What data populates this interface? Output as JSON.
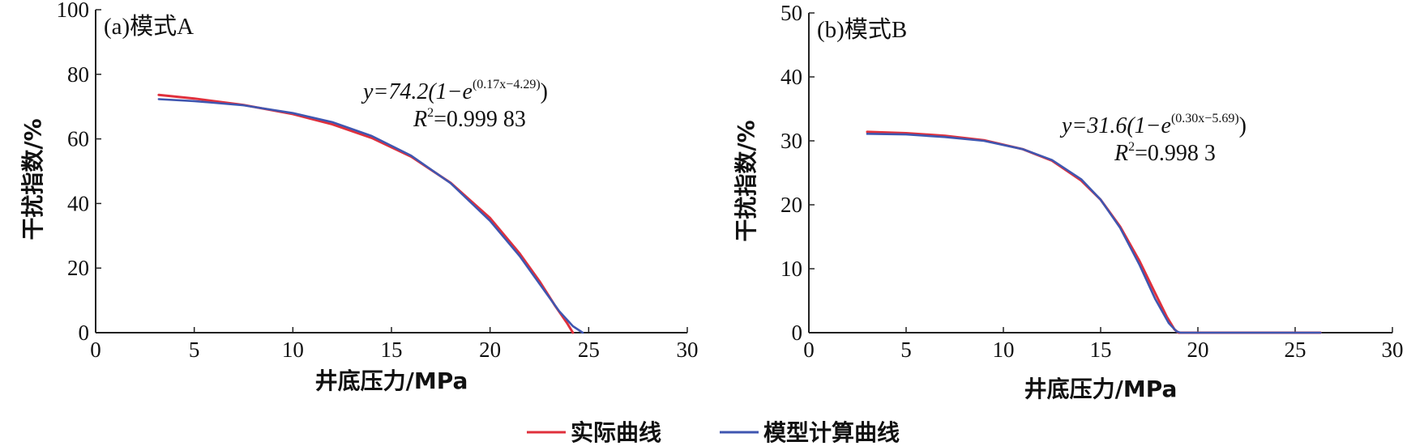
{
  "chart_data": [
    {
      "type": "line",
      "title": "(a)模式A",
      "xlabel": "井底压力/MPa",
      "ylabel": "干扰指数/%",
      "xlim": [
        0,
        30
      ],
      "ylim": [
        0,
        100
      ],
      "xticks": [
        "0",
        "5",
        "10",
        "15",
        "20",
        "25",
        "30"
      ],
      "yticks": [
        "0",
        "20",
        "40",
        "60",
        "80",
        "100"
      ],
      "equation": {
        "prefix": "y=74.2(1−e",
        "exponent": "(0.17x−4.29)",
        "suffix": ")",
        "r2_prefix": "R",
        "r2_sup": "2",
        "r2_value": "=0.999 83"
      },
      "series": [
        {
          "name": "实际曲线",
          "color": "#e0303c",
          "x": [
            3.2,
            5,
            7.5,
            10,
            12,
            14,
            16,
            18,
            20,
            21.5,
            22.5,
            23.3,
            23.9,
            24.1,
            24.2
          ],
          "y": [
            73.6,
            72.5,
            70.5,
            67.7,
            64.5,
            60.3,
            54.5,
            46.4,
            35.5,
            24.5,
            16,
            8.3,
            3,
            1,
            0
          ]
        },
        {
          "name": "模型计算曲线",
          "color": "#3f56b0",
          "x": [
            3.2,
            5,
            7.5,
            10,
            12,
            14,
            16,
            18,
            20,
            21.5,
            22.5,
            23.5,
            24.2,
            24.7
          ],
          "y": [
            72.3,
            71.7,
            70.4,
            68,
            65.2,
            60.9,
            54.8,
            46.3,
            34.6,
            23.7,
            15.2,
            6.7,
            2,
            0
          ]
        }
      ]
    },
    {
      "type": "line",
      "title": "(b)模式B",
      "xlabel": "井底压力/MPa",
      "ylabel": "干扰指数/%",
      "xlim": [
        0,
        30
      ],
      "ylim": [
        0,
        50
      ],
      "xticks": [
        "0",
        "5",
        "10",
        "15",
        "20",
        "25",
        "30"
      ],
      "yticks": [
        "0",
        "10",
        "20",
        "30",
        "40",
        "50"
      ],
      "equation": {
        "prefix": "y=31.6(1−e",
        "exponent": "(0.30x−5.69)",
        "suffix": ")",
        "r2_prefix": "R",
        "r2_sup": "2",
        "r2_value": "=0.998 3"
      },
      "series": [
        {
          "name": "实际曲线",
          "color": "#e0303c",
          "x": [
            3,
            5,
            7,
            9,
            11,
            12.5,
            14,
            15,
            16,
            17,
            17.8,
            18.4,
            18.8,
            19,
            26.3
          ],
          "y": [
            31.4,
            31.2,
            30.8,
            30.1,
            28.7,
            26.9,
            23.8,
            20.8,
            16.6,
            11.2,
            6.2,
            2.5,
            0.5,
            0,
            0
          ]
        },
        {
          "name": "模型计算曲线",
          "color": "#3f56b0",
          "x": [
            3,
            5,
            7,
            9,
            11,
            12.5,
            14,
            15,
            16,
            17,
            17.8,
            18.5,
            18.9,
            19.1,
            26.3
          ],
          "y": [
            31.1,
            31.0,
            30.6,
            30.0,
            28.7,
            27.0,
            24.0,
            20.8,
            16.4,
            10.6,
            5.3,
            1.5,
            0.2,
            0,
            0
          ]
        }
      ]
    }
  ],
  "legend": {
    "items": [
      {
        "label": "实际曲线",
        "color": "#e0303c"
      },
      {
        "label": "模型计算曲线",
        "color": "#3f56b0"
      }
    ]
  }
}
